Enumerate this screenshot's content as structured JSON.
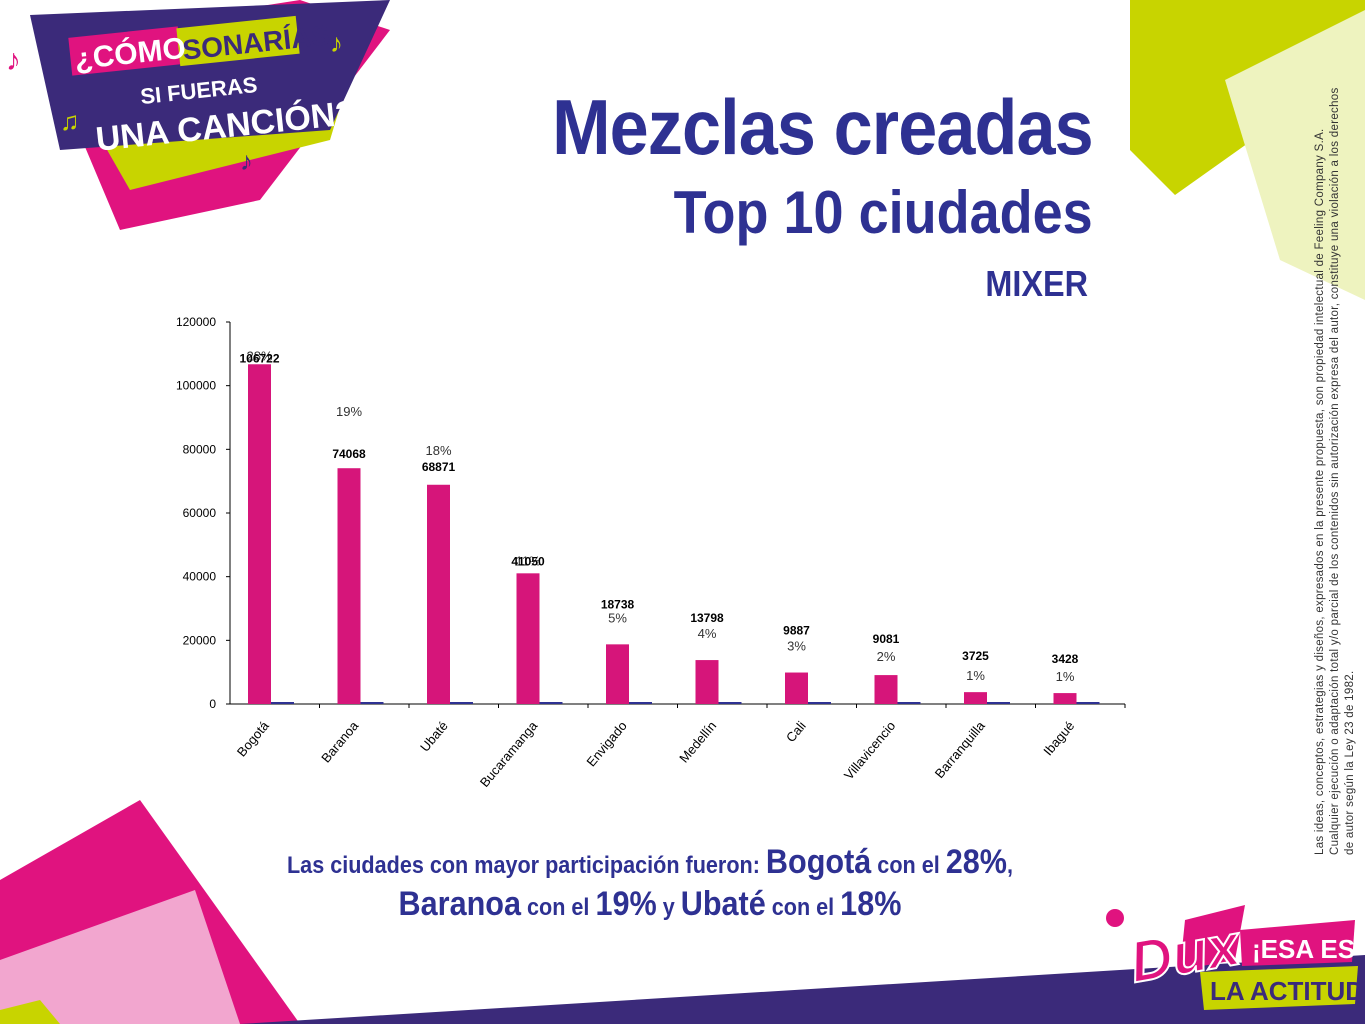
{
  "header": {
    "title": "Mezclas creadas",
    "subtitle": "Top 10 ciudades",
    "tag": "MIXER"
  },
  "logo": {
    "line1a": "¿CÓMO",
    "line1b": "SONARÍAS",
    "line2": "SI FUERAS",
    "line3": "UNA CANCIÓN?"
  },
  "legal_text": "Las ideas, conceptos, estrategias y diseños, expresados en la presente propuesta, son propiedad intelectual de Feeling Company S.A. Cualquier ejecución o adaptación total y/o parcial de los contenidos sin autorización expresa del autor, constituye una violación a los derechos de autor según la Ley 23 de 1982.",
  "summary": {
    "p1": "Las ciudades con mayor participación fueron:",
    "c1": "Bogotá",
    "p2": "con el",
    "v1": "28%",
    "p3": ",",
    "c2": "Baranoa",
    "p4": "con el",
    "v2": "19%",
    "p5": "y",
    "c3": "Ubaté",
    "p6": "con el",
    "v3": "18%"
  },
  "brand": {
    "name": "Dux",
    "slogan1": "¡ESA ES",
    "slogan2": "LA ACTITUD!"
  },
  "chart_data": {
    "type": "bar",
    "categories": [
      "Bogotá",
      "Baranoa",
      "Ubaté",
      "Bucaramanga",
      "Envigado",
      "Medellín",
      "Cali",
      "Villavicencio",
      "Barranquilla",
      "Ibagué"
    ],
    "values": [
      106722,
      74068,
      68871,
      41050,
      18738,
      13798,
      9887,
      9081,
      3725,
      3428
    ],
    "percent_labels": [
      "28%",
      "19%",
      "18%",
      "11%",
      "5%",
      "4%",
      "3%",
      "2%",
      "1%",
      "1%"
    ],
    "yticks": [
      0,
      20000,
      40000,
      60000,
      80000,
      100000,
      120000
    ],
    "ylim": [
      0,
      120000
    ],
    "grid": false,
    "colors": {
      "bar": "#d6157a",
      "secondary": "#2e3192",
      "axis": "#000000"
    }
  },
  "colors": {
    "brand_blue": "#2e3192",
    "magenta": "#e0137f",
    "lime": "#c8d400",
    "light_lime": "#eef3bf",
    "pink_light": "#f2a6cf",
    "purple": "#3b2a7a"
  }
}
